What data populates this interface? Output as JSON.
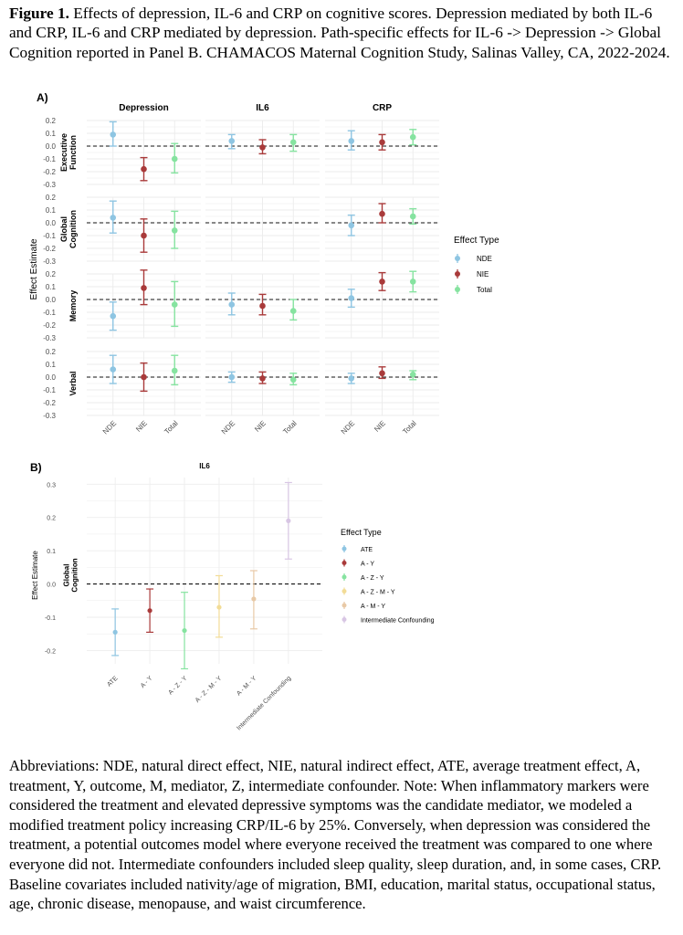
{
  "caption": {
    "label": "Figure 1.",
    "text": "Effects of depression, IL-6 and CRP on cognitive scores. Depression mediated by both IL-6 and CRP, IL-6 and CRP mediated by depression. Path-specific effects for IL-6 -> Depression -> Global Cognition reported in Panel B. CHAMACOS Maternal Cognition Study, Salinas Valley, CA, 2022-2024."
  },
  "notes": "Abbreviations: NDE, natural direct effect, NIE, natural indirect effect, ATE, average treatment effect, A, treatment, Y, outcome, M, mediator, Z, intermediate confounder. Note: When inflammatory markers were considered the treatment and elevated depressive symptoms was the candidate mediator, we modeled a modified treatment policy increasing CRP/IL-6 by 25%. Conversely, when depression was considered the treatment, a potential outcomes model where everyone received the treatment was compared to one where everyone did not. Intermediate confounders included sleep quality, sleep duration, and, in some cases, CRP. Baseline covariates included nativity/age of migration, BMI, education, marital status, occupational status, age, chronic disease, menopause, and waist circumference.",
  "colors": {
    "NDE": "#8ec5e2",
    "NIE": "#a93a3a",
    "Total": "#86e3a0",
    "ATE": "#8ec5e2",
    "A - Y": "#a93a3a",
    "A - Z - Y": "#86e3a0",
    "A - Z - M - Y": "#f2dc96",
    "A - M - Y": "#e8c9a6",
    "Intermediate Confounding": "#d8c6e4"
  },
  "chart_data": [
    {
      "type": "scatter",
      "panel_label": "A)",
      "ylabel": "Effect Estimate",
      "ylim": [
        -0.3,
        0.2
      ],
      "yticks": [
        "0.2",
        "0.1",
        "0.0",
        "-0.1",
        "-0.2",
        "-0.3"
      ],
      "ytick_values": [
        0.2,
        0.1,
        0.0,
        -0.1,
        -0.2,
        -0.3
      ],
      "columns": [
        "Depression",
        "IL6",
        "CRP"
      ],
      "rows": [
        "Executive Function",
        "Global Cognition",
        "Memory",
        "Verbal"
      ],
      "categories": [
        "NDE",
        "NIE",
        "Total"
      ],
      "legend": {
        "title": "Effect Type",
        "entries": [
          "NDE",
          "NIE",
          "Total"
        ],
        "position": "right"
      },
      "grid": true,
      "reference_line": 0,
      "cells": [
        [
          [
            {
              "est": 0.09,
              "lo": 0.0,
              "hi": 0.19
            },
            {
              "est": -0.18,
              "lo": -0.27,
              "hi": -0.09
            },
            {
              "est": -0.1,
              "lo": -0.21,
              "hi": 0.02
            }
          ],
          [
            {
              "est": 0.04,
              "lo": -0.02,
              "hi": 0.09
            },
            {
              "est": -0.01,
              "lo": -0.06,
              "hi": 0.05
            },
            {
              "est": 0.03,
              "lo": -0.04,
              "hi": 0.09
            }
          ],
          [
            {
              "est": 0.04,
              "lo": -0.03,
              "hi": 0.12
            },
            {
              "est": 0.03,
              "lo": -0.03,
              "hi": 0.09
            },
            {
              "est": 0.07,
              "lo": 0.01,
              "hi": 0.13
            }
          ]
        ],
        [
          [
            {
              "est": 0.04,
              "lo": -0.08,
              "hi": 0.17
            },
            {
              "est": -0.1,
              "lo": -0.23,
              "hi": 0.03
            },
            {
              "est": -0.06,
              "lo": -0.2,
              "hi": 0.09
            }
          ],
          [
            null,
            null,
            null
          ],
          [
            {
              "est": -0.02,
              "lo": -0.1,
              "hi": 0.06
            },
            {
              "est": 0.07,
              "lo": 0.0,
              "hi": 0.15
            },
            {
              "est": 0.05,
              "lo": -0.01,
              "hi": 0.11
            }
          ]
        ],
        [
          [
            {
              "est": -0.13,
              "lo": -0.24,
              "hi": -0.02
            },
            {
              "est": 0.09,
              "lo": -0.04,
              "hi": 0.23
            },
            {
              "est": -0.04,
              "lo": -0.21,
              "hi": 0.14
            }
          ],
          [
            {
              "est": -0.04,
              "lo": -0.12,
              "hi": 0.05
            },
            {
              "est": -0.05,
              "lo": -0.12,
              "hi": 0.04
            },
            {
              "est": -0.09,
              "lo": -0.16,
              "hi": 0.0
            }
          ],
          [
            {
              "est": 0.01,
              "lo": -0.06,
              "hi": 0.08
            },
            {
              "est": 0.14,
              "lo": 0.07,
              "hi": 0.21
            },
            {
              "est": 0.14,
              "lo": 0.06,
              "hi": 0.22
            }
          ]
        ],
        [
          [
            {
              "est": 0.06,
              "lo": -0.05,
              "hi": 0.17
            },
            {
              "est": 0.0,
              "lo": -0.11,
              "hi": 0.11
            },
            {
              "est": 0.05,
              "lo": -0.06,
              "hi": 0.17
            }
          ],
          [
            {
              "est": 0.0,
              "lo": -0.04,
              "hi": 0.04
            },
            {
              "est": -0.01,
              "lo": -0.05,
              "hi": 0.04
            },
            {
              "est": -0.02,
              "lo": -0.06,
              "hi": 0.03
            }
          ],
          [
            {
              "est": -0.01,
              "lo": -0.05,
              "hi": 0.03
            },
            {
              "est": 0.03,
              "lo": -0.01,
              "hi": 0.08
            },
            {
              "est": 0.02,
              "lo": -0.02,
              "hi": 0.05
            }
          ]
        ]
      ]
    },
    {
      "type": "scatter",
      "panel_label": "B)",
      "column": "IL6",
      "row": "Global Cognition",
      "ylabel": "Effect Estimate",
      "ylim": [
        -0.24,
        0.32
      ],
      "yticks": [
        "0.3",
        "0.2",
        "0.1",
        "0.0",
        "-0.1",
        "-0.2"
      ],
      "ytick_values": [
        0.3,
        0.2,
        0.1,
        0.0,
        -0.1,
        -0.2
      ],
      "categories": [
        "ATE",
        "A - Y",
        "A - Z - Y",
        "A - Z - M - Y",
        "A - M - Y",
        "Intermediate Confounding"
      ],
      "legend": {
        "title": "Effect Type",
        "entries": [
          "ATE",
          "A - Y",
          "A - Z - Y",
          "A - Z - M - Y",
          "A - M - Y",
          "Intermediate Confounding"
        ],
        "position": "right"
      },
      "grid": true,
      "reference_line": 0,
      "points": [
        {
          "est": -0.145,
          "lo": -0.215,
          "hi": -0.075
        },
        {
          "est": -0.08,
          "lo": -0.145,
          "hi": -0.015
        },
        {
          "est": -0.14,
          "lo": -0.255,
          "hi": -0.025
        },
        {
          "est": -0.07,
          "lo": -0.16,
          "hi": 0.025
        },
        {
          "est": -0.045,
          "lo": -0.135,
          "hi": 0.04
        },
        {
          "est": 0.19,
          "lo": 0.075,
          "hi": 0.305
        }
      ]
    }
  ]
}
